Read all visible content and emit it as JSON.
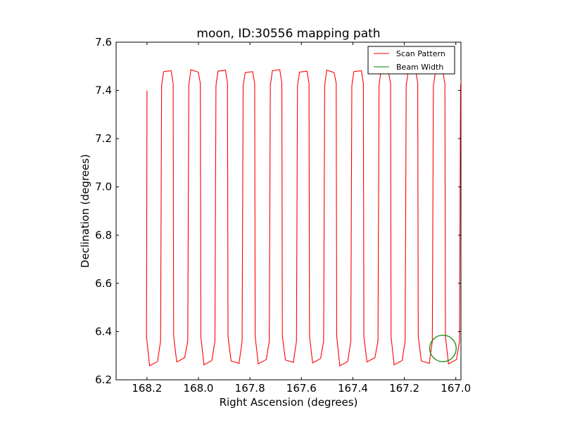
{
  "chart_data": {
    "type": "line",
    "title": "moon, ID:30556 mapping path",
    "xlabel": "Right Ascension (degrees)",
    "ylabel": "Declination (degrees)",
    "xlim": [
      168.32,
      166.98
    ],
    "ylim": [
      6.2,
      7.6
    ],
    "x_inverted": true,
    "xticks": [
      168.2,
      168.0,
      167.8,
      167.6,
      167.4,
      167.2,
      167.0
    ],
    "xtick_labels": [
      "168.2",
      "168.0",
      "167.8",
      "167.6",
      "167.4",
      "167.2",
      "167.0"
    ],
    "yticks": [
      6.2,
      6.4,
      6.6,
      6.8,
      7.0,
      7.2,
      7.4,
      7.6
    ],
    "ytick_labels": [
      "6.2",
      "6.4",
      "6.6",
      "6.8",
      "7.0",
      "7.2",
      "7.4",
      "7.6"
    ],
    "grid": false,
    "legend_position": "top-right",
    "series": [
      {
        "name": "Scan Pattern",
        "color": "#ff0000",
        "x_start": 168.2,
        "x_step": -0.0528,
        "legs": 26,
        "dec_top": 7.48,
        "dec_bottom": 6.27,
        "start_dec": 7.4
      },
      {
        "name": "Beam Width",
        "color": "#008000",
        "shape": "circle",
        "center": [
          167.05,
          6.33
        ],
        "radius_dec": 0.055
      }
    ]
  }
}
